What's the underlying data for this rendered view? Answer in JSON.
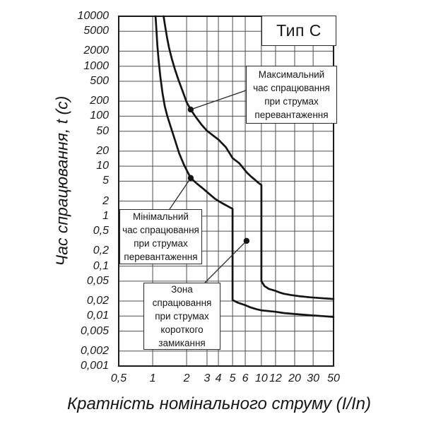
{
  "chart_data": {
    "type": "line",
    "title": "Тип С",
    "xlabel": "Кратність номінального струму (I/In)",
    "ylabel": "Час спрацювання, t (с)",
    "xlim": [
      0.5,
      50
    ],
    "ylim": [
      0.001,
      10000
    ],
    "x_scale": "log",
    "y_scale": "log",
    "grid": true,
    "x_ticks": [
      "0,5",
      "1",
      "2",
      "3",
      "4",
      "5",
      "6",
      "10",
      "12",
      "20",
      "30",
      "50"
    ],
    "x_tick_values": [
      0.5,
      1,
      2,
      3,
      4,
      5,
      6,
      10,
      12,
      20,
      30,
      50
    ],
    "y_ticks": [
      "10000",
      "5000",
      "2000",
      "1000",
      "500",
      "200",
      "100",
      "50",
      "20",
      "10",
      "5",
      "2",
      "1",
      "0,5",
      "0,2",
      "0,1",
      "0,05",
      "0,02",
      "0,01",
      "0,005",
      "0,002",
      "0,001"
    ],
    "y_tick_values": [
      10000,
      5000,
      2000,
      1000,
      500,
      200,
      100,
      50,
      20,
      10,
      5,
      2,
      1,
      0.5,
      0.2,
      0.1,
      0.05,
      0.02,
      0.01,
      0.005,
      0.002,
      0.001
    ],
    "series": [
      {
        "id": "max-trip-time",
        "points": [
          [
            1.25,
            10000
          ],
          [
            1.29,
            6300
          ],
          [
            1.34,
            3800
          ],
          [
            1.4,
            2300
          ],
          [
            1.48,
            1400
          ],
          [
            1.58,
            850
          ],
          [
            1.7,
            520
          ],
          [
            1.85,
            310
          ],
          [
            2.0,
            190
          ],
          [
            2.17,
            136
          ],
          [
            2.4,
            96
          ],
          [
            2.7,
            67
          ],
          [
            3.0,
            51
          ],
          [
            3.5,
            41
          ],
          [
            4.0,
            34
          ],
          [
            4.5,
            24
          ],
          [
            5.0,
            14.5
          ],
          [
            5.5,
            11.5
          ],
          [
            6.3,
            7.5
          ],
          [
            7.2,
            6.2
          ],
          [
            8.2,
            5.3
          ],
          [
            9.0,
            4.7
          ],
          [
            10.0,
            4.2
          ],
          [
            10.0,
            0.05
          ],
          [
            10.4,
            0.04
          ],
          [
            11.0,
            0.035
          ],
          [
            12.0,
            0.032
          ],
          [
            13.5,
            0.0295
          ],
          [
            15.0,
            0.028
          ],
          [
            18.0,
            0.0265
          ],
          [
            22.0,
            0.025
          ],
          [
            28.0,
            0.0238
          ],
          [
            35.0,
            0.023
          ],
          [
            50.0,
            0.022
          ]
        ]
      },
      {
        "id": "min-trip-time",
        "points": [
          [
            1.06,
            10000
          ],
          [
            1.08,
            5200
          ],
          [
            1.1,
            2700
          ],
          [
            1.13,
            1300
          ],
          [
            1.17,
            620
          ],
          [
            1.22,
            300
          ],
          [
            1.28,
            160
          ],
          [
            1.35,
            100
          ],
          [
            1.45,
            60
          ],
          [
            1.58,
            33
          ],
          [
            1.72,
            18
          ],
          [
            1.9,
            10.5
          ],
          [
            2.17,
            5.8
          ],
          [
            2.45,
            4.5
          ],
          [
            2.8,
            3.5
          ],
          [
            3.2,
            2.75
          ],
          [
            3.7,
            2.2
          ],
          [
            4.2,
            1.85
          ],
          [
            4.6,
            1.6
          ],
          [
            5.0,
            1.4
          ],
          [
            5.0,
            0.021
          ],
          [
            5.4,
            0.0185
          ],
          [
            6.0,
            0.0165
          ],
          [
            7.0,
            0.015
          ],
          [
            8.5,
            0.0138
          ],
          [
            10.0,
            0.013
          ],
          [
            12.0,
            0.0122
          ],
          [
            15.0,
            0.0115
          ],
          [
            20.0,
            0.011
          ],
          [
            28.0,
            0.0104
          ],
          [
            38.0,
            0.01
          ],
          [
            50.0,
            0.0096
          ]
        ]
      }
    ],
    "markers": [
      {
        "x": 2.17,
        "t": 136
      },
      {
        "x": 2.17,
        "t": 5.8
      },
      {
        "x": 6.25,
        "t": 0.32
      }
    ],
    "annotations": [
      {
        "id": "max",
        "text": "Максимальний\nчас спрацювання\nпри струмах\nперевантаження"
      },
      {
        "id": "min",
        "text": "Мінімальний\nчас спрацювання\nпри струмах\nперевантаження"
      },
      {
        "id": "zona",
        "text": "Зона\nспрацювання\nпри струмах\nкороткого\nзамикання"
      }
    ]
  }
}
